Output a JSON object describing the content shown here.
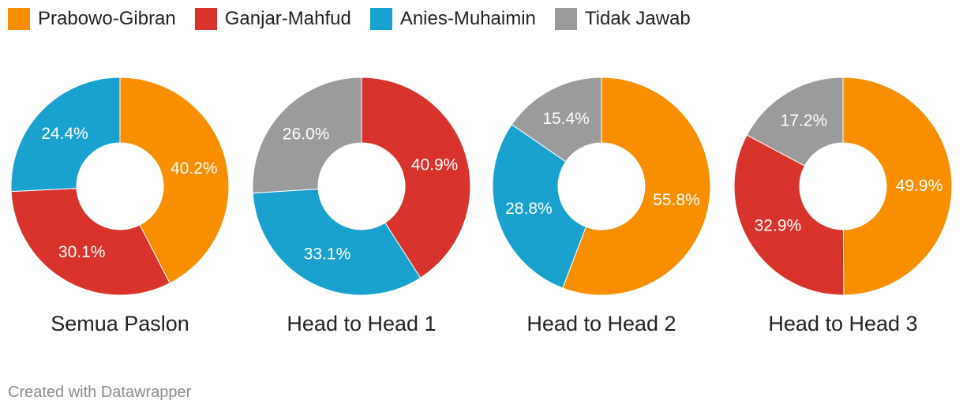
{
  "legend": [
    {
      "name": "Prabowo-Gibran",
      "color": "#f98f00"
    },
    {
      "name": "Ganjar-Mahfud",
      "color": "#d8342c"
    },
    {
      "name": "Anies-Muhaimin",
      "color": "#1aa2cf"
    },
    {
      "name": "Tidak Jawab",
      "color": "#9b9b9b"
    }
  ],
  "chart_data": [
    {
      "type": "pie",
      "subtype": "donut",
      "title": "Semua Paslon",
      "slices": [
        {
          "name": "Prabowo-Gibran",
          "value": 40.2,
          "label": "40.2%",
          "color": "#f98f00"
        },
        {
          "name": "Ganjar-Mahfud",
          "value": 30.1,
          "label": "30.1%",
          "color": "#d8342c"
        },
        {
          "name": "Anies-Muhaimin",
          "value": 24.4,
          "label": "24.4%",
          "color": "#1aa2cf"
        }
      ]
    },
    {
      "type": "pie",
      "subtype": "donut",
      "title": "Head to Head 1",
      "slices": [
        {
          "name": "Ganjar-Mahfud",
          "value": 40.9,
          "label": "40.9%",
          "color": "#d8342c"
        },
        {
          "name": "Anies-Muhaimin",
          "value": 33.1,
          "label": "33.1%",
          "color": "#1aa2cf"
        },
        {
          "name": "Tidak Jawab",
          "value": 26.0,
          "label": "26.0%",
          "color": "#9b9b9b"
        }
      ]
    },
    {
      "type": "pie",
      "subtype": "donut",
      "title": "Head to Head 2",
      "slices": [
        {
          "name": "Prabowo-Gibran",
          "value": 55.8,
          "label": "55.8%",
          "color": "#f98f00"
        },
        {
          "name": "Anies-Muhaimin",
          "value": 28.8,
          "label": "28.8%",
          "color": "#1aa2cf"
        },
        {
          "name": "Tidak Jawab",
          "value": 15.4,
          "label": "15.4%",
          "color": "#9b9b9b"
        }
      ]
    },
    {
      "type": "pie",
      "subtype": "donut",
      "title": "Head to Head 3",
      "slices": [
        {
          "name": "Prabowo-Gibran",
          "value": 49.9,
          "label": "49.9%",
          "color": "#f98f00"
        },
        {
          "name": "Ganjar-Mahfud",
          "value": 32.9,
          "label": "32.9%",
          "color": "#d8342c"
        },
        {
          "name": "Tidak Jawab",
          "value": 17.2,
          "label": "17.2%",
          "color": "#9b9b9b"
        }
      ]
    }
  ],
  "footer": {
    "credit": "Created with Datawrapper"
  }
}
